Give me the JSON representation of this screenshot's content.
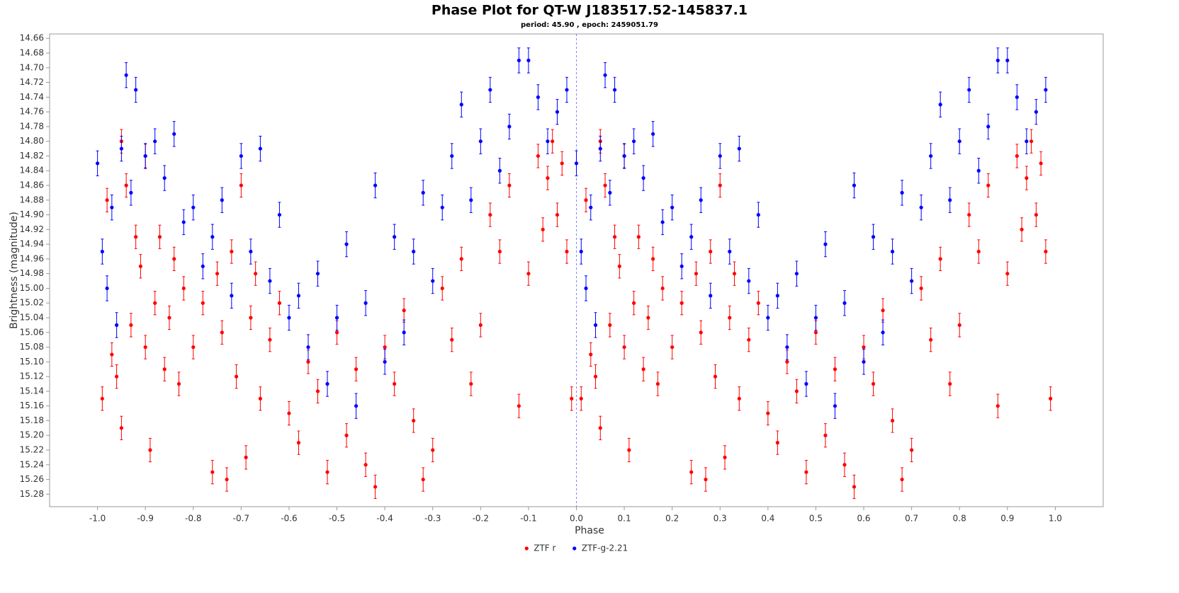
{
  "chart_data": {
    "type": "scatter",
    "title": "Phase Plot for QT-W J183517.52-145837.1",
    "subtitle": "period: 45.90  , epoch: 2459051.79",
    "x_label": "Phase",
    "y_label": "Brightness (magnitude)",
    "xlim": [
      -1.1,
      1.1
    ],
    "ylim": [
      14.654,
      15.297
    ],
    "y_inverted": true,
    "grid": false,
    "legend": "bottom",
    "reference_line_x": 0,
    "reference_line_color": "#8080ff",
    "xticks": [
      {
        "value": -1,
        "label": "-1.0"
      },
      -0.9,
      -0.8,
      -0.7,
      -0.6,
      -0.5,
      -0.4,
      -0.3,
      -0.2,
      -0.1,
      {
        "value": 0,
        "label": "0.0"
      },
      0.1,
      0.2,
      0.3,
      0.4,
      0.5,
      0.6,
      0.7,
      0.8,
      0.9,
      {
        "value": 1,
        "label": "1.0"
      }
    ],
    "yticks": [
      14.66,
      14.68,
      {
        "value": 14.7,
        "label": "14.70"
      },
      14.72,
      14.74,
      14.76,
      14.78,
      {
        "value": 14.8,
        "label": "14.80"
      },
      14.82,
      14.84,
      14.86,
      14.88,
      {
        "value": 14.9,
        "label": "14.90"
      },
      14.92,
      14.94,
      14.96,
      14.98,
      {
        "value": 15.0,
        "label": "15.00"
      },
      15.02,
      15.04,
      15.06,
      15.08,
      {
        "value": 15.1,
        "label": "15.10"
      },
      15.12,
      15.14,
      15.16,
      15.18,
      {
        "value": 15.2,
        "label": "15.20"
      },
      15.22,
      15.24,
      15.26,
      15.28
    ],
    "series": [
      {
        "name": "ZTF r",
        "color": "#ff0000",
        "yerr": 0.016,
        "x": [
          -0.99,
          -0.98,
          -0.97,
          -0.96,
          -0.95,
          -0.95,
          -0.94,
          -0.93,
          -0.92,
          -0.91,
          -0.9,
          -0.9,
          -0.89,
          -0.88,
          -0.87,
          -0.86,
          -0.85,
          -0.84,
          -0.83,
          -0.82,
          -0.8,
          -0.78,
          -0.76,
          -0.75,
          -0.74,
          -0.73,
          -0.72,
          -0.71,
          -0.7,
          -0.69,
          -0.68,
          -0.67,
          -0.66,
          -0.64,
          -0.62,
          -0.6,
          -0.58,
          -0.56,
          -0.54,
          -0.52,
          -0.5,
          -0.48,
          -0.46,
          -0.44,
          -0.42,
          -0.4,
          -0.38,
          -0.36,
          -0.34,
          -0.32,
          -0.3,
          -0.28,
          -0.26,
          -0.24,
          -0.22,
          -0.2,
          -0.18,
          -0.16,
          -0.14,
          -0.12,
          -0.1,
          -0.08,
          -0.07,
          -0.06,
          -0.05,
          -0.04,
          -0.03,
          -0.02,
          -0.01,
          0.01,
          0.02,
          0.03,
          0.04,
          0.05,
          0.05,
          0.06,
          0.07,
          0.08,
          0.09,
          0.1,
          0.1,
          0.11,
          0.12,
          0.13,
          0.14,
          0.15,
          0.16,
          0.17,
          0.18,
          0.2,
          0.22,
          0.24,
          0.25,
          0.26,
          0.27,
          0.28,
          0.29,
          0.3,
          0.31,
          0.32,
          0.33,
          0.34,
          0.36,
          0.38,
          0.4,
          0.42,
          0.44,
          0.46,
          0.48,
          0.5,
          0.52,
          0.54,
          0.56,
          0.58,
          0.6,
          0.62,
          0.64,
          0.66,
          0.68,
          0.7,
          0.72,
          0.74,
          0.76,
          0.78,
          0.8,
          0.82,
          0.84,
          0.86,
          0.88,
          0.9,
          0.92,
          0.93,
          0.94,
          0.95,
          0.96,
          0.97,
          0.98,
          0.99
        ],
        "values": [
          15.15,
          14.88,
          15.09,
          15.12,
          14.8,
          15.19,
          14.86,
          15.05,
          14.93,
          14.97,
          15.08,
          14.82,
          15.22,
          15.02,
          14.93,
          15.11,
          15.04,
          14.96,
          15.13,
          15.0,
          15.08,
          15.02,
          15.25,
          14.98,
          15.06,
          15.26,
          14.95,
          15.12,
          14.86,
          15.23,
          15.04,
          14.98,
          15.15,
          15.07,
          15.02,
          15.17,
          15.21,
          15.1,
          15.14,
          15.25,
          15.06,
          15.2,
          15.11,
          15.24,
          15.27,
          15.08,
          15.13,
          15.03,
          15.18,
          15.26,
          15.22,
          15.0,
          15.07,
          14.96,
          15.13,
          15.05,
          14.9,
          14.95,
          14.86,
          15.16,
          14.98,
          14.82,
          14.92,
          14.85,
          14.8,
          14.9,
          14.83,
          14.95,
          15.15,
          15.15,
          14.88,
          15.09,
          15.12,
          14.8,
          15.19,
          14.86,
          15.05,
          14.93,
          14.97,
          15.08,
          14.82,
          15.22,
          15.02,
          14.93,
          15.11,
          15.04,
          14.96,
          15.13,
          15.0,
          15.08,
          15.02,
          15.25,
          14.98,
          15.06,
          15.26,
          14.95,
          15.12,
          14.86,
          15.23,
          15.04,
          14.98,
          15.15,
          15.07,
          15.02,
          15.17,
          15.21,
          15.1,
          15.14,
          15.25,
          15.06,
          15.2,
          15.11,
          15.24,
          15.27,
          15.08,
          15.13,
          15.03,
          15.18,
          15.26,
          15.22,
          15.0,
          15.07,
          14.96,
          15.13,
          15.05,
          14.9,
          14.95,
          14.86,
          15.16,
          14.98,
          14.82,
          14.92,
          14.85,
          14.8,
          14.9,
          14.83,
          14.95,
          15.15
        ]
      },
      {
        "name": "ZTF-g-2.21",
        "color": "#0000ff",
        "yerr": 0.017,
        "x": [
          -1,
          -0.99,
          -0.98,
          -0.97,
          -0.96,
          -0.95,
          -0.94,
          -0.93,
          -0.92,
          -0.9,
          -0.88,
          -0.86,
          -0.84,
          -0.82,
          -0.8,
          -0.78,
          -0.76,
          -0.74,
          -0.72,
          -0.7,
          -0.68,
          -0.66,
          -0.64,
          -0.62,
          -0.6,
          -0.58,
          -0.56,
          -0.54,
          -0.52,
          -0.5,
          -0.48,
          -0.46,
          -0.44,
          -0.42,
          -0.4,
          -0.38,
          -0.36,
          -0.34,
          -0.32,
          -0.3,
          -0.28,
          -0.26,
          -0.24,
          -0.22,
          -0.2,
          -0.18,
          -0.16,
          -0.14,
          -0.12,
          -0.1,
          -0.08,
          -0.06,
          -0.04,
          -0.02,
          0,
          0.01,
          0.02,
          0.03,
          0.04,
          0.05,
          0.06,
          0.07,
          0.08,
          0.1,
          0.12,
          0.14,
          0.16,
          0.18,
          0.2,
          0.22,
          0.24,
          0.26,
          0.28,
          0.3,
          0.32,
          0.34,
          0.36,
          0.38,
          0.4,
          0.42,
          0.44,
          0.46,
          0.48,
          0.5,
          0.52,
          0.54,
          0.56,
          0.58,
          0.6,
          0.62,
          0.64,
          0.66,
          0.68,
          0.7,
          0.72,
          0.74,
          0.76,
          0.78,
          0.8,
          0.82,
          0.84,
          0.86,
          0.88,
          0.9,
          0.92,
          0.94,
          0.96,
          0.98
        ],
        "values": [
          14.83,
          14.95,
          15.0,
          14.89,
          15.05,
          14.81,
          14.71,
          14.87,
          14.73,
          14.82,
          14.8,
          14.85,
          14.79,
          14.91,
          14.89,
          14.97,
          14.93,
          14.88,
          15.01,
          14.82,
          14.95,
          14.81,
          14.99,
          14.9,
          15.04,
          15.01,
          15.08,
          14.98,
          15.13,
          15.04,
          14.94,
          15.16,
          15.02,
          14.86,
          15.1,
          14.93,
          15.06,
          14.95,
          14.87,
          14.99,
          14.89,
          14.82,
          14.75,
          14.88,
          14.8,
          14.73,
          14.84,
          14.78,
          14.69,
          14.69,
          14.74,
          14.8,
          14.76,
          14.73,
          14.83,
          14.95,
          15.0,
          14.89,
          15.05,
          14.81,
          14.71,
          14.87,
          14.73,
          14.82,
          14.8,
          14.85,
          14.79,
          14.91,
          14.89,
          14.97,
          14.93,
          14.88,
          15.01,
          14.82,
          14.95,
          14.81,
          14.99,
          14.9,
          15.04,
          15.01,
          15.08,
          14.98,
          15.13,
          15.04,
          14.94,
          15.16,
          15.02,
          14.86,
          15.1,
          14.93,
          15.06,
          14.95,
          14.87,
          14.99,
          14.89,
          14.82,
          14.75,
          14.88,
          14.8,
          14.73,
          14.84,
          14.78,
          14.69,
          14.69,
          14.74,
          14.8,
          14.76,
          14.73
        ]
      }
    ]
  }
}
